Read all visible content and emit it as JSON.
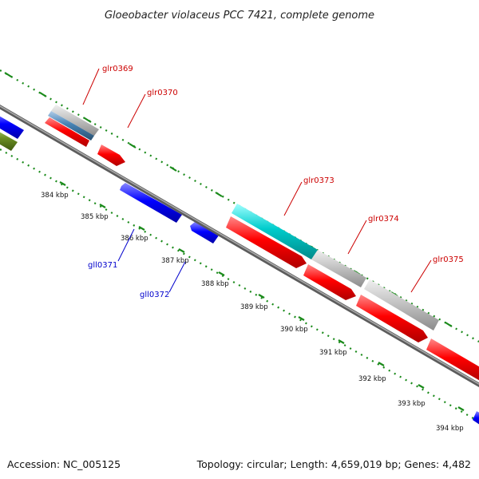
{
  "title": "Gloeobacter violaceus PCC 7421, complete genome",
  "footer": {
    "accession": "Accession: NC_005125",
    "topology": "Topology: circular; Length: 4,659,019 bp; Genes: 4,482"
  },
  "colors": {
    "forward_cds": "#ff0000",
    "reverse_cds": "#0000ff",
    "rrna": "#00c8c8",
    "other_feature": "#c0c0c0",
    "ticks": "#1a8a1a",
    "backbone": "#808080",
    "label_forward": "#cc0000",
    "label_reverse": "#0000cc"
  },
  "scale_labels": [
    "384 kbp",
    "385 kbp",
    "386 kbp",
    "387 kbp",
    "388 kbp",
    "389 kbp",
    "390 kbp",
    "391 kbp",
    "392 kbp",
    "393 kbp",
    "394 kbp"
  ],
  "gene_labels": {
    "glr0369": "glr0369",
    "glr0370": "glr0370",
    "gll0371": "gll0371",
    "gll0372": "gll0372",
    "glr0373": "glr0373",
    "glr0374": "glr0374",
    "glr0375": "glr0375"
  }
}
